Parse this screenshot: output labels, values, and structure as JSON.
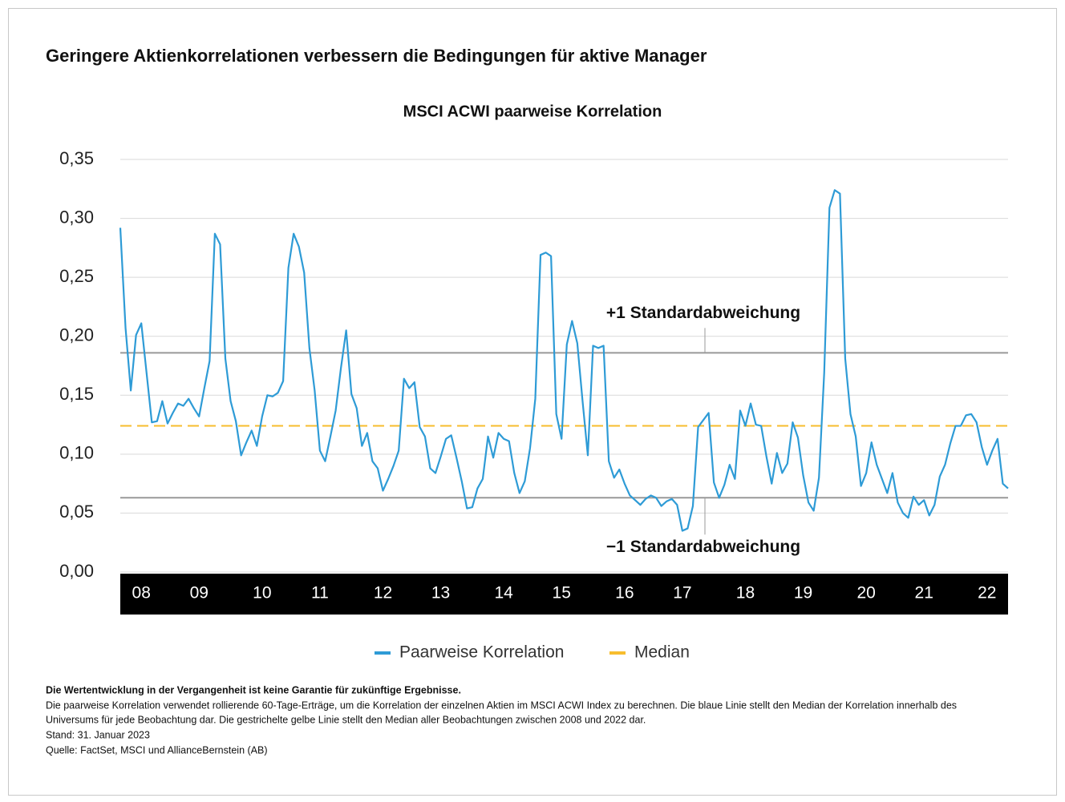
{
  "chart_data": {
    "type": "line",
    "title": "Geringere Aktienkorrelationen verbessern die Bedingungen für aktive Manager",
    "subtitle": "MSCI ACWI paarweise Korrelation",
    "ylim": [
      0,
      0.35
    ],
    "yticks": [
      {
        "value": 0,
        "label": "0,00"
      },
      {
        "value": 0.05,
        "label": "0,05"
      },
      {
        "value": 0.1,
        "label": "0,10"
      },
      {
        "value": 0.15,
        "label": "0,15"
      },
      {
        "value": 0.2,
        "label": "0,20"
      },
      {
        "value": 0.25,
        "label": "0,25"
      },
      {
        "value": 0.3,
        "label": "0,30"
      },
      {
        "value": 0.35,
        "label": "0,35"
      }
    ],
    "grid": true,
    "categories": [
      null,
      null,
      null,
      null,
      "08",
      null,
      null,
      null,
      null,
      null,
      null,
      null,
      null,
      null,
      null,
      "09",
      null,
      null,
      null,
      null,
      null,
      null,
      null,
      null,
      null,
      null,
      null,
      "10",
      null,
      null,
      null,
      null,
      null,
      null,
      null,
      null,
      null,
      null,
      "11",
      null,
      null,
      null,
      null,
      null,
      null,
      null,
      null,
      null,
      null,
      null,
      "12",
      null,
      null,
      null,
      null,
      null,
      null,
      null,
      null,
      null,
      null,
      "13",
      null,
      null,
      null,
      null,
      null,
      null,
      null,
      null,
      null,
      null,
      null,
      "14",
      null,
      null,
      null,
      null,
      null,
      null,
      null,
      null,
      null,
      null,
      "15",
      null,
      null,
      null,
      null,
      null,
      null,
      null,
      null,
      null,
      null,
      null,
      "16",
      null,
      null,
      null,
      null,
      null,
      null,
      null,
      null,
      null,
      null,
      "17",
      null,
      null,
      null,
      null,
      null,
      null,
      null,
      null,
      null,
      null,
      null,
      "18",
      null,
      null,
      null,
      null,
      null,
      null,
      null,
      null,
      null,
      null,
      "19",
      null,
      null,
      null,
      null,
      null,
      null,
      null,
      null,
      null,
      null,
      null,
      "20",
      null,
      null,
      null,
      null,
      null,
      null,
      null,
      null,
      null,
      null,
      "21",
      null,
      null,
      null,
      null,
      null,
      null,
      null,
      null,
      null,
      null,
      null,
      "22",
      null,
      null,
      null,
      null
    ],
    "series": [
      {
        "name": "Paarweise Korrelation",
        "color": "#2e9bd6",
        "values": [
          0.292,
          0.207,
          0.154,
          0.201,
          0.211,
          0.169,
          0.127,
          0.128,
          0.145,
          0.126,
          0.135,
          0.143,
          0.141,
          0.147,
          0.139,
          0.132,
          0.156,
          0.179,
          0.287,
          0.278,
          0.181,
          0.145,
          0.128,
          0.099,
          0.11,
          0.12,
          0.107,
          0.132,
          0.15,
          0.149,
          0.152,
          0.162,
          0.258,
          0.287,
          0.276,
          0.254,
          0.19,
          0.154,
          0.103,
          0.094,
          0.115,
          0.137,
          0.173,
          0.205,
          0.151,
          0.139,
          0.107,
          0.118,
          0.094,
          0.088,
          0.069,
          0.079,
          0.09,
          0.103,
          0.164,
          0.156,
          0.161,
          0.123,
          0.115,
          0.088,
          0.084,
          0.098,
          0.113,
          0.116,
          0.097,
          0.077,
          0.054,
          0.055,
          0.071,
          0.079,
          0.115,
          0.097,
          0.118,
          0.113,
          0.111,
          0.084,
          0.067,
          0.077,
          0.105,
          0.147,
          0.269,
          0.271,
          0.268,
          0.134,
          0.113,
          0.193,
          0.213,
          0.194,
          0.145,
          0.099,
          0.192,
          0.19,
          0.192,
          0.094,
          0.08,
          0.087,
          0.075,
          0.065,
          0.061,
          0.057,
          0.062,
          0.065,
          0.063,
          0.056,
          0.06,
          0.062,
          0.057,
          0.035,
          0.037,
          0.056,
          0.123,
          0.129,
          0.135,
          0.076,
          0.063,
          0.074,
          0.091,
          0.079,
          0.137,
          0.124,
          0.143,
          0.125,
          0.124,
          0.098,
          0.075,
          0.101,
          0.084,
          0.092,
          0.127,
          0.114,
          0.082,
          0.059,
          0.052,
          0.08,
          0.169,
          0.309,
          0.324,
          0.321,
          0.181,
          0.134,
          0.115,
          0.073,
          0.084,
          0.11,
          0.091,
          0.079,
          0.067,
          0.084,
          0.059,
          0.05,
          0.046,
          0.064,
          0.057,
          0.061,
          0.048,
          0.057,
          0.081,
          0.091,
          0.109,
          0.124,
          0.124,
          0.133,
          0.134,
          0.127,
          0.106,
          0.091,
          0.103,
          0.113,
          0.075,
          0.071
        ]
      }
    ],
    "median": {
      "name": "Median",
      "color": "#f7bd2e",
      "value": 0.124
    },
    "annotations": [
      {
        "text": "+1 Standardabweichung",
        "value": 0.186
      },
      {
        "text": "−1 Standardabweichung",
        "value": 0.063
      }
    ],
    "notes": [
      "Die Wertentwicklung in der Vergangenheit ist keine Garantie für zukünftige Ergebnisse.",
      "Die paarweise Korrelation verwendet rollierende 60-Tage-Erträge, um die Korrelation der einzelnen Aktien im MSCI ACWI Index zu berechnen. Die blaue Linie stellt den Median der Korrelation innerhalb des",
      "Universums für jede Beobachtung dar. Die gestrichelte gelbe Linie stellt den Median aller Beobachtungen zwischen 2008 und 2022 dar.",
      "Stand: 31. Januar 2023",
      "Quelle: FactSet, MSCI und AllianceBernstein (AB)"
    ]
  }
}
